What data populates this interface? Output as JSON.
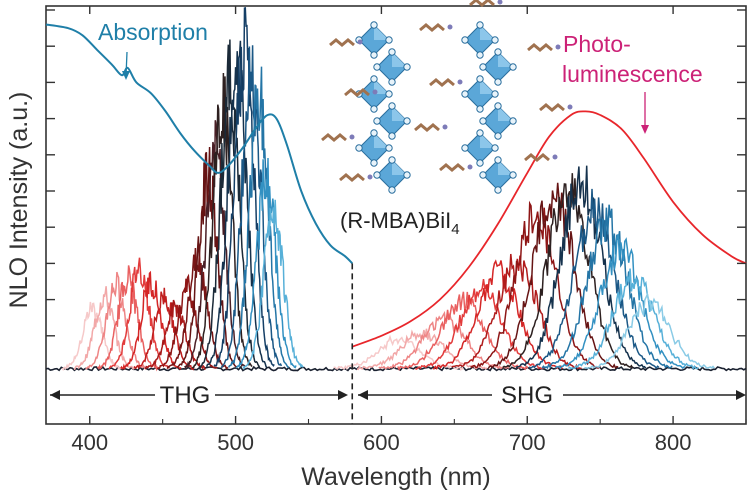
{
  "chart_data": {
    "type": "line",
    "xlabel": "Wavelength (nm)",
    "ylabel": "NLO Intensity (a.u.)",
    "xlim": [
      370,
      850
    ],
    "ylim": [
      0,
      1.0
    ],
    "x_ticks": [
      400,
      500,
      600,
      700,
      800
    ],
    "y_ticks": [
      0.1,
      0.2,
      0.3,
      0.4,
      0.5,
      0.6,
      0.7,
      0.8,
      0.9,
      1.0
    ],
    "grid": false,
    "legend": "none",
    "divider_x": 580,
    "annotations": {
      "absorption": "Absorption",
      "pl_line1": "Photo-",
      "pl_line2": "luminescence",
      "compound_main": "(R-MBA)BiI",
      "compound_sub": "4",
      "thg": "THG",
      "shg": "SHG"
    },
    "colors": {
      "absorption": "#1f7fa8",
      "photoluminescence": "#e8262b",
      "annotation_pl": "#cc2277",
      "axis": "#333333"
    },
    "absorption_curve": {
      "x": [
        370,
        385,
        395,
        405,
        415,
        422,
        426,
        432,
        442,
        452,
        462,
        472,
        482,
        488,
        495,
        505,
        515,
        522,
        528,
        535,
        545,
        555,
        565,
        575,
        580
      ],
      "y": [
        0.96,
        0.95,
        0.93,
        0.89,
        0.85,
        0.82,
        0.84,
        0.8,
        0.77,
        0.72,
        0.66,
        0.61,
        0.57,
        0.55,
        0.57,
        0.62,
        0.68,
        0.71,
        0.7,
        0.63,
        0.5,
        0.41,
        0.35,
        0.32,
        0.3
      ]
    },
    "photoluminescence_curve": {
      "x": [
        580,
        600,
        620,
        640,
        660,
        680,
        700,
        715,
        730,
        740,
        750,
        765,
        780,
        800,
        820,
        840,
        850
      ],
      "y": [
        0.07,
        0.1,
        0.14,
        0.2,
        0.29,
        0.41,
        0.55,
        0.65,
        0.71,
        0.72,
        0.71,
        0.67,
        0.59,
        0.47,
        0.38,
        0.32,
        0.3
      ]
    },
    "thg_peaks": {
      "centers": [
        402,
        410,
        418,
        426,
        434,
        442,
        451,
        459,
        467,
        474,
        481,
        486,
        491,
        496,
        501,
        506,
        511,
        516,
        521,
        526
      ],
      "amplitudes": [
        0.17,
        0.2,
        0.23,
        0.25,
        0.28,
        0.24,
        0.2,
        0.17,
        0.22,
        0.3,
        0.53,
        0.6,
        0.72,
        0.78,
        0.86,
        0.9,
        0.82,
        0.74,
        0.52,
        0.45
      ],
      "width": 6.5,
      "colors": [
        "#f6c9c9",
        "#f2a8a8",
        "#ee8585",
        "#e96060",
        "#e23b3b",
        "#d42626",
        "#c01e1e",
        "#a81919",
        "#8e1616",
        "#781515",
        "#661414",
        "#4a1f26",
        "#2d2020",
        "#1b2a38",
        "#15324d",
        "#153f66",
        "#1b5886",
        "#2475a6",
        "#3391c2",
        "#57b0d8"
      ]
    },
    "shg_peaks": {
      "centers": [
        612,
        628,
        643,
        656,
        668,
        680,
        693,
        706,
        718,
        728,
        737,
        746,
        755,
        764,
        773,
        784
      ],
      "amplitudes": [
        0.08,
        0.1,
        0.14,
        0.19,
        0.22,
        0.26,
        0.29,
        0.42,
        0.48,
        0.5,
        0.52,
        0.44,
        0.4,
        0.33,
        0.25,
        0.18
      ],
      "width": 14,
      "colors": [
        "#f6c9c9",
        "#f2a8a8",
        "#ee8585",
        "#e96060",
        "#e23b3b",
        "#d42626",
        "#b01c1c",
        "#8e1616",
        "#661414",
        "#2d2020",
        "#15324d",
        "#1b5886",
        "#2475a6",
        "#3391c2",
        "#57b0d8",
        "#8acbe6"
      ]
    }
  }
}
